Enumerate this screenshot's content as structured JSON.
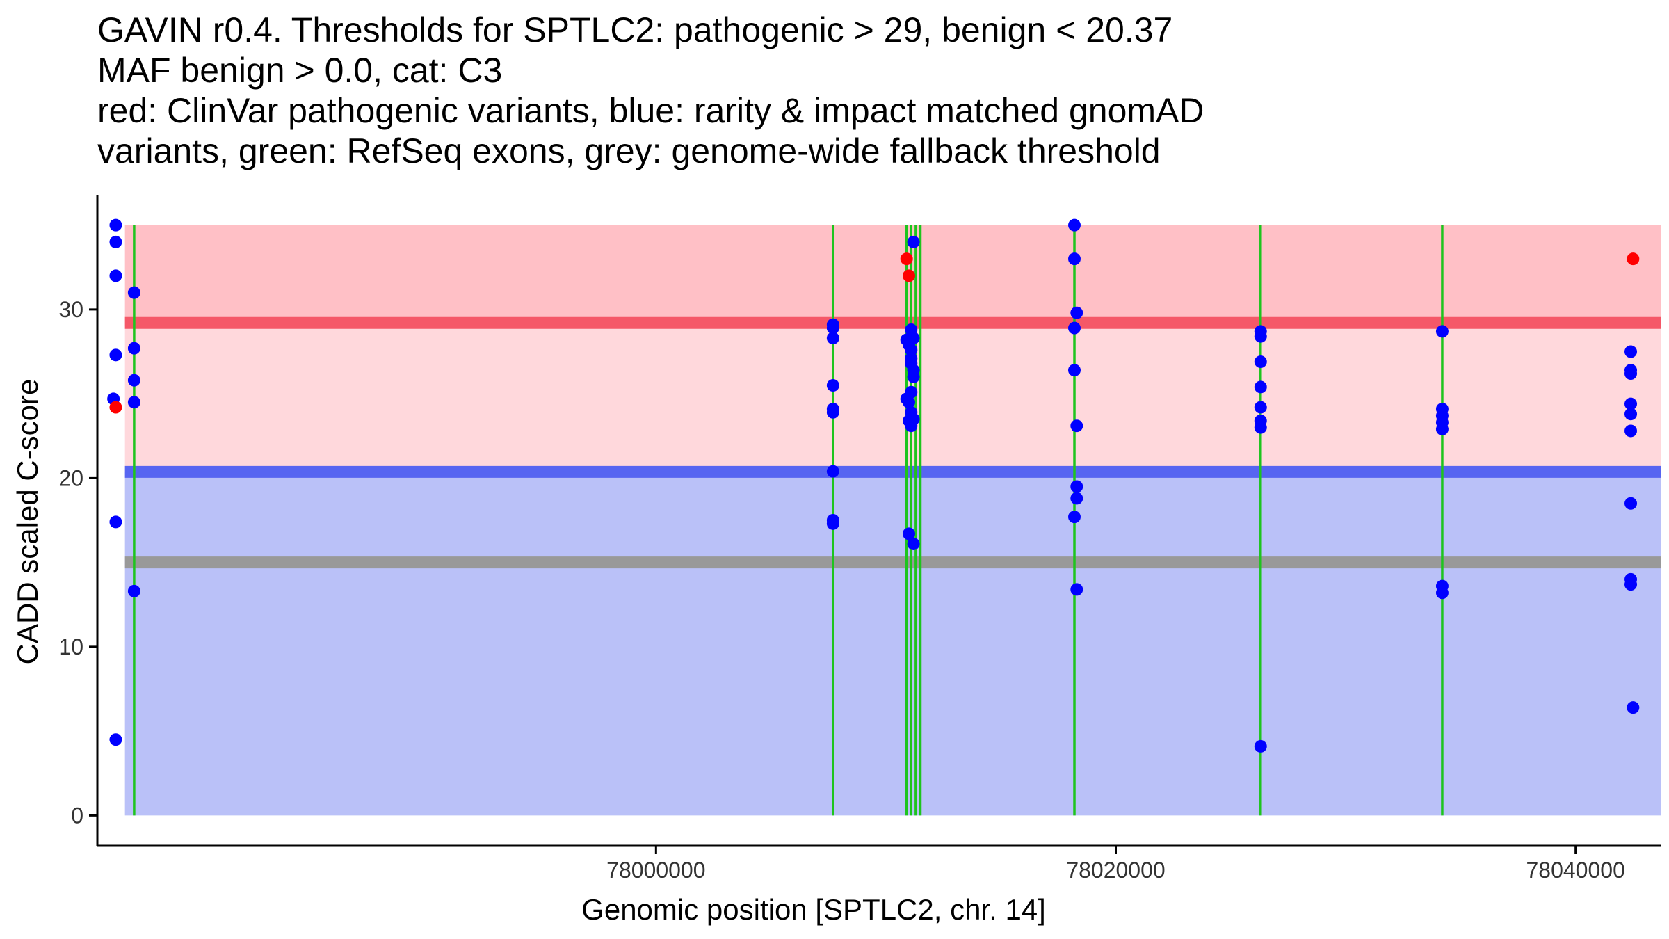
{
  "title_lines": [
    "GAVIN r0.4. Thresholds for SPTLC2: pathogenic > 29, benign < 20.37",
    "MAF benign > 0.0, cat: C3",
    "red: ClinVar pathogenic variants, blue: rarity & impact matched gnomAD",
    "variants, green: RefSeq exons, grey: genome-wide fallback threshold"
  ],
  "chart_data": {
    "type": "scatter",
    "xlabel": "Genomic position [SPTLC2, chr. 14]",
    "ylabel": "CADD scaled C-score",
    "xlim": [
      77975700,
      78043700
    ],
    "ylim": [
      -1.8,
      36.8
    ],
    "xticks": [
      78000000,
      78020000,
      78040000
    ],
    "yticks": [
      0,
      10,
      20,
      30
    ],
    "grid": false,
    "bands": [
      {
        "name": "pathogenic zone",
        "y0": 29,
        "y1": 35,
        "color": "#ffc0c6"
      },
      {
        "name": "intermediate zone",
        "y0": 20.37,
        "y1": 29,
        "color": "#ffd8dc"
      },
      {
        "name": "benign zone",
        "y0": 0,
        "y1": 20.37,
        "color": "#bac1f8"
      }
    ],
    "threshold_lines": [
      {
        "name": "pathogenic threshold",
        "y": 29.2,
        "color": "#f55868"
      },
      {
        "name": "benign threshold",
        "y": 20.37,
        "color": "#5765f1"
      },
      {
        "name": "genome-wide fallback threshold",
        "y": 15.0,
        "color": "#999999"
      }
    ],
    "exon_positions": [
      77977300,
      78007700,
      78010900,
      78011100,
      78011300,
      78011500,
      78018200,
      78026300,
      78034200
    ],
    "exon_y_range": [
      0,
      35
    ],
    "series": [
      {
        "name": "rarity & impact matched gnomAD variants",
        "color": "#0000ff",
        "points": [
          [
            77976500,
            35
          ],
          [
            77976500,
            34
          ],
          [
            77976500,
            32
          ],
          [
            77976500,
            27.3
          ],
          [
            77976400,
            24.7
          ],
          [
            77976500,
            17.4
          ],
          [
            77976500,
            4.5
          ],
          [
            77977300,
            31
          ],
          [
            77977300,
            27.7
          ],
          [
            77977300,
            25.8
          ],
          [
            77977300,
            24.5
          ],
          [
            77977300,
            13.3
          ],
          [
            78007700,
            29.1
          ],
          [
            78007700,
            28.9
          ],
          [
            78007700,
            28.3
          ],
          [
            78007700,
            25.5
          ],
          [
            78007700,
            24.1
          ],
          [
            78007700,
            23.9
          ],
          [
            78007700,
            20.4
          ],
          [
            78007700,
            17.5
          ],
          [
            78007700,
            17.3
          ],
          [
            78010900,
            28.2
          ],
          [
            78011000,
            27.9
          ],
          [
            78011100,
            28.8
          ],
          [
            78011200,
            28.3
          ],
          [
            78011100,
            27.6
          ],
          [
            78011100,
            27.1
          ],
          [
            78011100,
            26.8
          ],
          [
            78011200,
            26.4
          ],
          [
            78011200,
            26.0
          ],
          [
            78011100,
            25.1
          ],
          [
            78010900,
            24.7
          ],
          [
            78011000,
            24.5
          ],
          [
            78011100,
            23.9
          ],
          [
            78011200,
            23.5
          ],
          [
            78011000,
            23.4
          ],
          [
            78011100,
            23.1
          ],
          [
            78011200,
            34.0
          ],
          [
            78011000,
            16.7
          ],
          [
            78011200,
            16.1
          ],
          [
            78018200,
            35
          ],
          [
            78018200,
            33
          ],
          [
            78018300,
            29.8
          ],
          [
            78018200,
            28.9
          ],
          [
            78018200,
            26.4
          ],
          [
            78018300,
            23.1
          ],
          [
            78018300,
            19.5
          ],
          [
            78018300,
            18.8
          ],
          [
            78018200,
            17.7
          ],
          [
            78018300,
            13.4
          ],
          [
            78026300,
            28.7
          ],
          [
            78026300,
            28.4
          ],
          [
            78026300,
            26.9
          ],
          [
            78026300,
            25.4
          ],
          [
            78026300,
            24.2
          ],
          [
            78026300,
            23.4
          ],
          [
            78026300,
            23.0
          ],
          [
            78026300,
            4.1
          ],
          [
            78034200,
            28.7
          ],
          [
            78034200,
            24.1
          ],
          [
            78034200,
            23.7
          ],
          [
            78034200,
            23.3
          ],
          [
            78034200,
            22.9
          ],
          [
            78034200,
            13.6
          ],
          [
            78034200,
            13.2
          ],
          [
            78042400,
            27.5
          ],
          [
            78042400,
            26.4
          ],
          [
            78042400,
            26.2
          ],
          [
            78042400,
            24.4
          ],
          [
            78042400,
            23.8
          ],
          [
            78042400,
            22.8
          ],
          [
            78042400,
            18.5
          ],
          [
            78042400,
            14.0
          ],
          [
            78042400,
            13.7
          ],
          [
            78042500,
            6.4
          ]
        ]
      },
      {
        "name": "ClinVar pathogenic variants",
        "color": "#ff0000",
        "points": [
          [
            77976500,
            24.2
          ],
          [
            78010900,
            33
          ],
          [
            78011000,
            32
          ],
          [
            78042500,
            33
          ]
        ]
      }
    ]
  }
}
